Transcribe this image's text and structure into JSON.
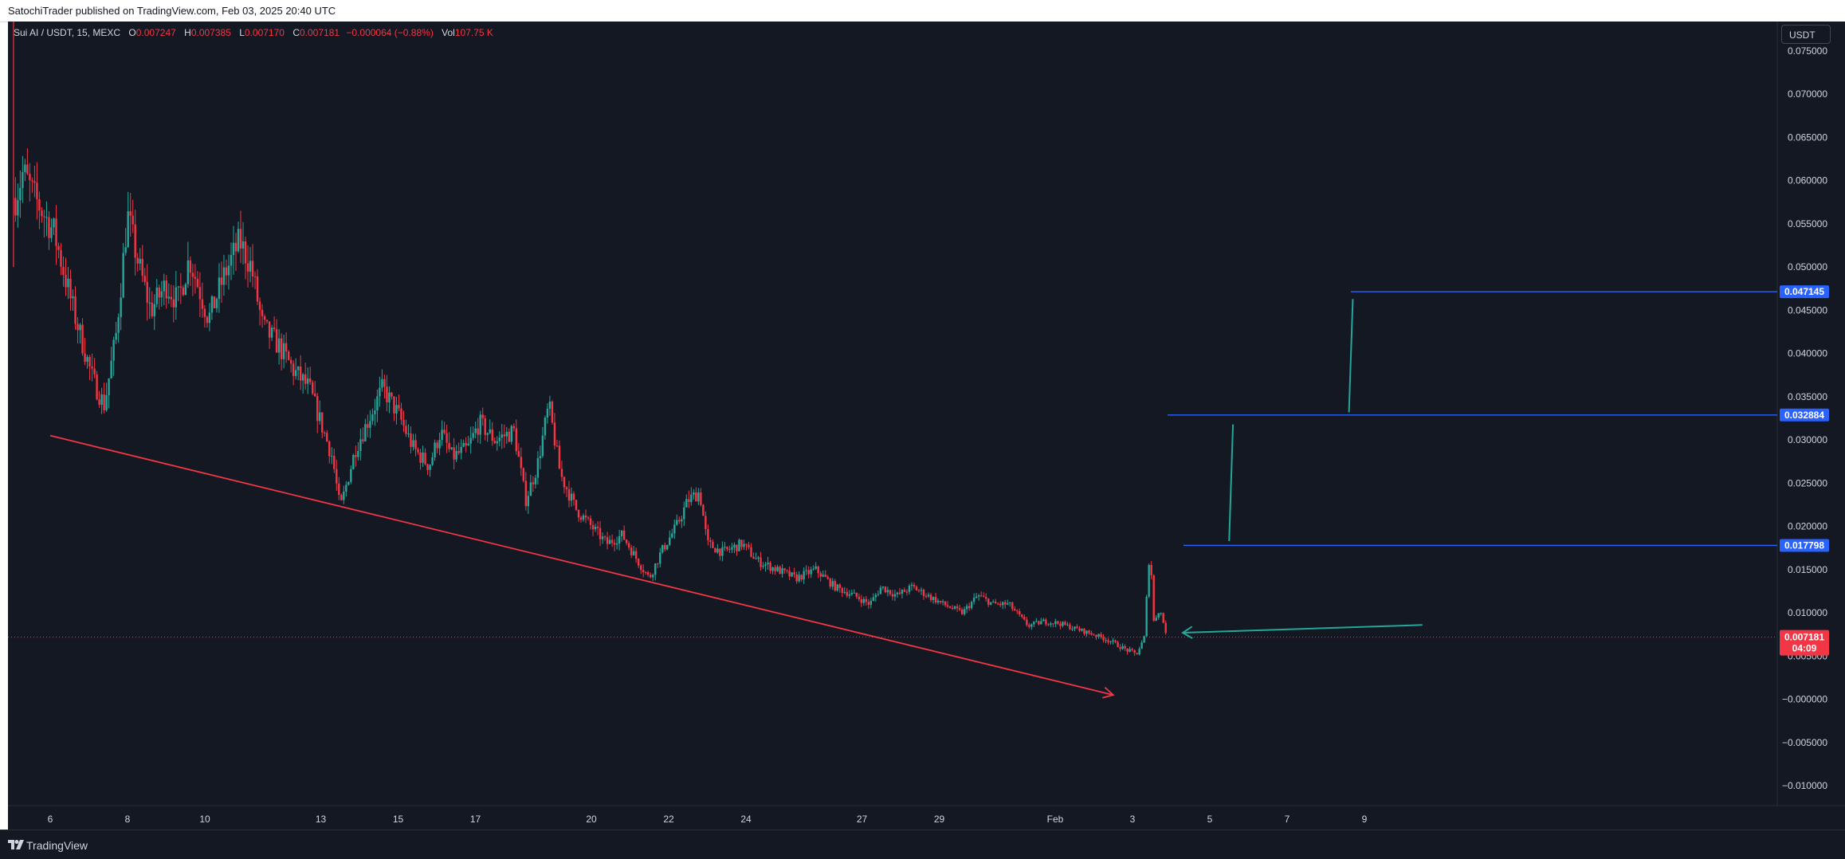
{
  "header": {
    "published_by": "SatochiTrader published on TradingView.com, Feb 03, 2025 20:40 UTC"
  },
  "legend": {
    "symbol": "Sui AI / USDT, 15, MEXC",
    "open_label": "O",
    "open": "0.007247",
    "high_label": "H",
    "high": "0.007385",
    "low_label": "L",
    "low": "0.007170",
    "close_label": "C",
    "close": "0.007181",
    "change": "−0.000064 (−0.88%)",
    "vol_label": "Vol",
    "vol": "107.75 K"
  },
  "currency_button": "USDT",
  "footer": {
    "brand": "TradingView",
    "logo": "tradingview-logo-icon"
  },
  "colors": {
    "background": "#141823",
    "up": "#26a69a",
    "down": "#f23645",
    "trendline": "#f23645",
    "level": "#2962ff",
    "arrow": "#26a69a"
  },
  "chart_data": {
    "type": "candlestick",
    "y_ticks": [
      0.075,
      0.07,
      0.065,
      0.06,
      0.055,
      0.05,
      0.045,
      0.04,
      0.035,
      0.03,
      0.025,
      0.02,
      0.015,
      0.01,
      0.005,
      -0.0,
      -0.005,
      -0.01
    ],
    "y_tick_labels": [
      "0.075000",
      "0.070000",
      "0.065000",
      "0.060000",
      "0.055000",
      "0.050000",
      "0.045000",
      "0.040000",
      "0.035000",
      "0.030000",
      "0.025000",
      "0.020000",
      "0.015000",
      "0.010000",
      "0.005000",
      "−0.000000",
      "−0.005000",
      "−0.010000"
    ],
    "ylim": [
      -0.0123,
      0.0784
    ],
    "x_ticks": [
      {
        "label": "6",
        "day": 6
      },
      {
        "label": "8",
        "day": 8
      },
      {
        "label": "10",
        "day": 10
      },
      {
        "label": "13",
        "day": 13
      },
      {
        "label": "15",
        "day": 15
      },
      {
        "label": "17",
        "day": 17
      },
      {
        "label": "20",
        "day": 20
      },
      {
        "label": "22",
        "day": 22
      },
      {
        "label": "24",
        "day": 24
      },
      {
        "label": "27",
        "day": 27
      },
      {
        "label": "29",
        "day": 29
      },
      {
        "label": "Feb",
        "day": 32
      },
      {
        "label": "3",
        "day": 34
      },
      {
        "label": "5",
        "day": 36
      },
      {
        "label": "7",
        "day": 38
      },
      {
        "label": "9",
        "day": 40
      }
    ],
    "price_path": [
      [
        5.1,
        0.058
      ],
      [
        5.3,
        0.061
      ],
      [
        5.6,
        0.058
      ],
      [
        6.1,
        0.054
      ],
      [
        6.6,
        0.045
      ],
      [
        7.1,
        0.037
      ],
      [
        7.4,
        0.034
      ],
      [
        7.7,
        0.042
      ],
      [
        8.0,
        0.056
      ],
      [
        8.3,
        0.05
      ],
      [
        8.6,
        0.045
      ],
      [
        9.0,
        0.048
      ],
      [
        9.3,
        0.046
      ],
      [
        9.6,
        0.051
      ],
      [
        10.1,
        0.044
      ],
      [
        10.5,
        0.049
      ],
      [
        10.9,
        0.053
      ],
      [
        11.2,
        0.05
      ],
      [
        11.5,
        0.043
      ],
      [
        11.9,
        0.041
      ],
      [
        12.3,
        0.038
      ],
      [
        12.7,
        0.036
      ],
      [
        13.0,
        0.032
      ],
      [
        13.3,
        0.028
      ],
      [
        13.5,
        0.022
      ],
      [
        13.9,
        0.029
      ],
      [
        14.3,
        0.033
      ],
      [
        14.6,
        0.036
      ],
      [
        15.0,
        0.033
      ],
      [
        15.4,
        0.029
      ],
      [
        15.8,
        0.027
      ],
      [
        16.1,
        0.031
      ],
      [
        16.4,
        0.028
      ],
      [
        16.8,
        0.029
      ],
      [
        17.1,
        0.032
      ],
      [
        17.5,
        0.03
      ],
      [
        18.0,
        0.031
      ],
      [
        18.3,
        0.023
      ],
      [
        18.6,
        0.027
      ],
      [
        18.9,
        0.034
      ],
      [
        19.2,
        0.026
      ],
      [
        19.6,
        0.022
      ],
      [
        20.0,
        0.02
      ],
      [
        20.4,
        0.018
      ],
      [
        20.8,
        0.019
      ],
      [
        21.2,
        0.016
      ],
      [
        21.5,
        0.014
      ],
      [
        21.8,
        0.017
      ],
      [
        22.2,
        0.02
      ],
      [
        22.5,
        0.023
      ],
      [
        22.8,
        0.024
      ],
      [
        23.0,
        0.018
      ],
      [
        23.4,
        0.017
      ],
      [
        23.9,
        0.018
      ],
      [
        24.3,
        0.016
      ],
      [
        24.8,
        0.015
      ],
      [
        25.3,
        0.014
      ],
      [
        25.8,
        0.015
      ],
      [
        26.3,
        0.013
      ],
      [
        26.8,
        0.012
      ],
      [
        27.2,
        0.011
      ],
      [
        27.5,
        0.013
      ],
      [
        27.9,
        0.012
      ],
      [
        28.3,
        0.013
      ],
      [
        28.7,
        0.012
      ],
      [
        29.1,
        0.011
      ],
      [
        29.6,
        0.01
      ],
      [
        30.0,
        0.012
      ],
      [
        30.4,
        0.011
      ],
      [
        30.8,
        0.011
      ],
      [
        31.3,
        0.0085
      ],
      [
        31.7,
        0.009
      ],
      [
        32.1,
        0.0088
      ],
      [
        32.5,
        0.0082
      ],
      [
        33.0,
        0.0075
      ],
      [
        33.4,
        0.0068
      ],
      [
        33.8,
        0.0058
      ],
      [
        34.1,
        0.0052
      ],
      [
        34.3,
        0.007
      ],
      [
        34.45,
        0.0178
      ],
      [
        34.55,
        0.009
      ],
      [
        34.7,
        0.0105
      ],
      [
        34.9,
        0.0072
      ]
    ],
    "price_levels": [
      {
        "value": 0.047145,
        "label": "0.047145"
      },
      {
        "value": 0.032884,
        "label": "0.032884"
      },
      {
        "value": 0.017798,
        "label": "0.017798"
      }
    ],
    "current_price": {
      "value": 0.007181,
      "label": "0.007181",
      "countdown": "04:09"
    },
    "trendline": {
      "from": [
        6.0,
        0.0305
      ],
      "to": [
        33.5,
        0.0005
      ]
    },
    "projection_lines": [
      {
        "from": [
          36.5,
          0.0183
        ],
        "to": [
          36.6,
          0.0318
        ]
      },
      {
        "from": [
          39.6,
          0.0332
        ],
        "to": [
          39.7,
          0.0463
        ]
      }
    ],
    "arrow": {
      "from": [
        41.5,
        0.0086
      ],
      "to": [
        35.3,
        0.0077
      ]
    }
  }
}
